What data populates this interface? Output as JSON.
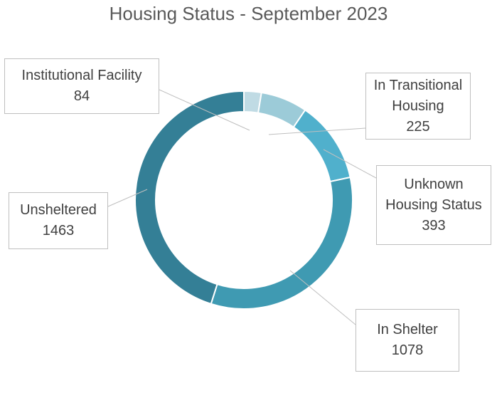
{
  "chart_data": {
    "type": "pie",
    "subtype": "donut",
    "title": "Housing Status - September 2023",
    "legend": "none (data labels as callouts)",
    "slices": [
      {
        "label": "Institutional Facility",
        "value": 84,
        "color": "#c0dbe4"
      },
      {
        "label": "In Transitional Housing",
        "value": 225,
        "color": "#9ccbd8"
      },
      {
        "label": "Unknown Housing Status",
        "value": 393,
        "color": "#50b0cc"
      },
      {
        "label": "In Shelter",
        "value": 1078,
        "color": "#3f9ab2"
      },
      {
        "label": "Unsheltered",
        "value": 1463,
        "color": "#347f96"
      }
    ]
  },
  "callouts": {
    "institutional": {
      "line1": "Institutional Facility",
      "line2": "84"
    },
    "transitional": {
      "line1": "In Transitional",
      "line2": "Housing",
      "line3": "225"
    },
    "unknown": {
      "line1": "Unknown",
      "line2": "Housing Status",
      "line3": "393"
    },
    "unsheltered": {
      "line1": "Unsheltered",
      "line2": "1463"
    },
    "shelter": {
      "line1": "In Shelter",
      "line2": "1078"
    }
  }
}
